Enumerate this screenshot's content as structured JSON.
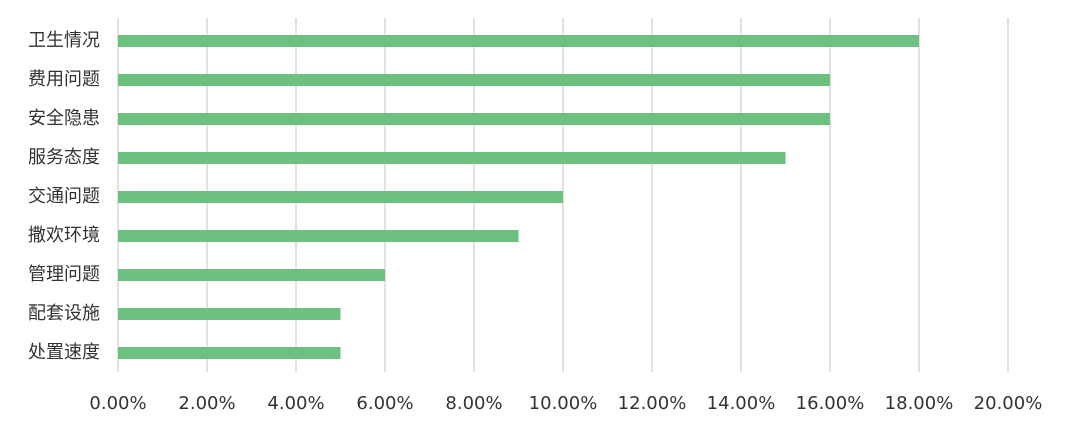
{
  "chart_data": {
    "type": "bar",
    "orientation": "horizontal",
    "title": "",
    "xlabel": "",
    "ylabel": "",
    "categories": [
      "卫生情况",
      "费用问题",
      "安全隐患",
      "服务态度",
      "交通问题",
      "撒欢环境",
      "管理问题",
      "配套设施",
      "处置速度"
    ],
    "values": [
      0.18,
      0.16,
      0.16,
      0.15,
      0.1,
      0.09,
      0.06,
      0.05,
      0.05
    ],
    "xlim": [
      0,
      0.2
    ],
    "x_ticks": [
      0,
      0.02,
      0.04,
      0.06,
      0.08,
      0.1,
      0.12,
      0.14,
      0.16,
      0.18,
      0.2
    ],
    "x_tick_labels": [
      "0.00%",
      "2.00%",
      "4.00%",
      "6.00%",
      "8.00%",
      "10.00%",
      "12.00%",
      "14.00%",
      "16.00%",
      "18.00%",
      "20.00%"
    ],
    "grid": "vertical",
    "legend": "none",
    "bar_color": "#6cc17e"
  }
}
